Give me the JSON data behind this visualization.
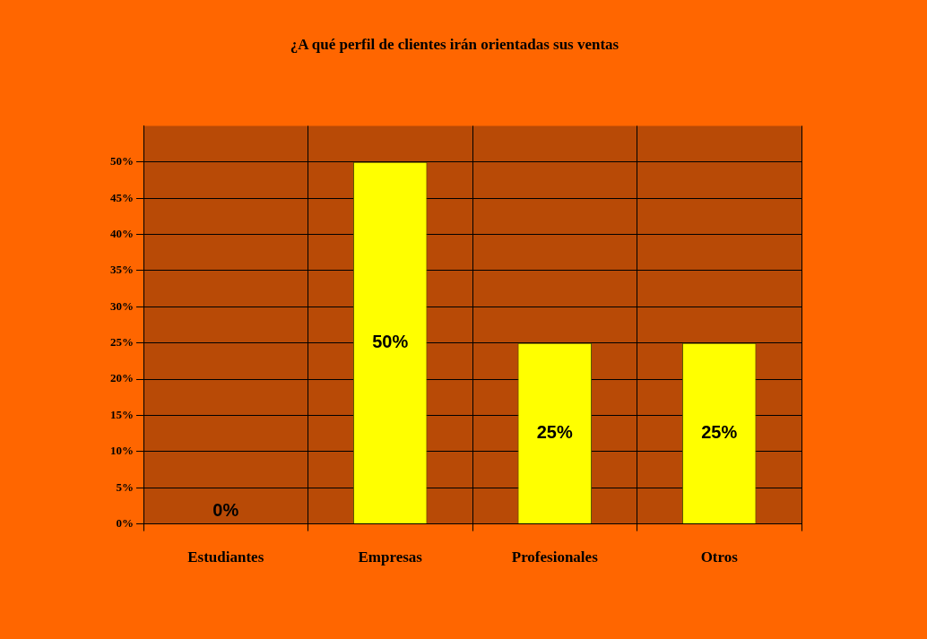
{
  "chart_data": {
    "type": "bar",
    "title": "¿A qué perfil de clientes irán orientadas sus ventas",
    "categories": [
      "Estudiantes",
      "Empresas",
      "Profesionales",
      "Otros"
    ],
    "values": [
      0,
      50,
      25,
      25
    ],
    "color": "#ffff00",
    "value_labels": [
      "0%",
      "50%",
      "25%",
      "25%"
    ],
    "ylim": [
      0,
      55
    ],
    "yticks": [
      {
        "value": 0,
        "label": "0%"
      },
      {
        "value": 5,
        "label": "5%"
      },
      {
        "value": 10,
        "label": "10%"
      },
      {
        "value": 15,
        "label": "15%"
      },
      {
        "value": 20,
        "label": "20%"
      },
      {
        "value": 25,
        "label": "25%"
      },
      {
        "value": 30,
        "label": "30%"
      },
      {
        "value": 35,
        "label": "35%"
      },
      {
        "value": 40,
        "label": "40%"
      },
      {
        "value": 45,
        "label": "45%"
      },
      {
        "value": 50,
        "label": "50%"
      }
    ],
    "grid": true,
    "legend": false
  }
}
